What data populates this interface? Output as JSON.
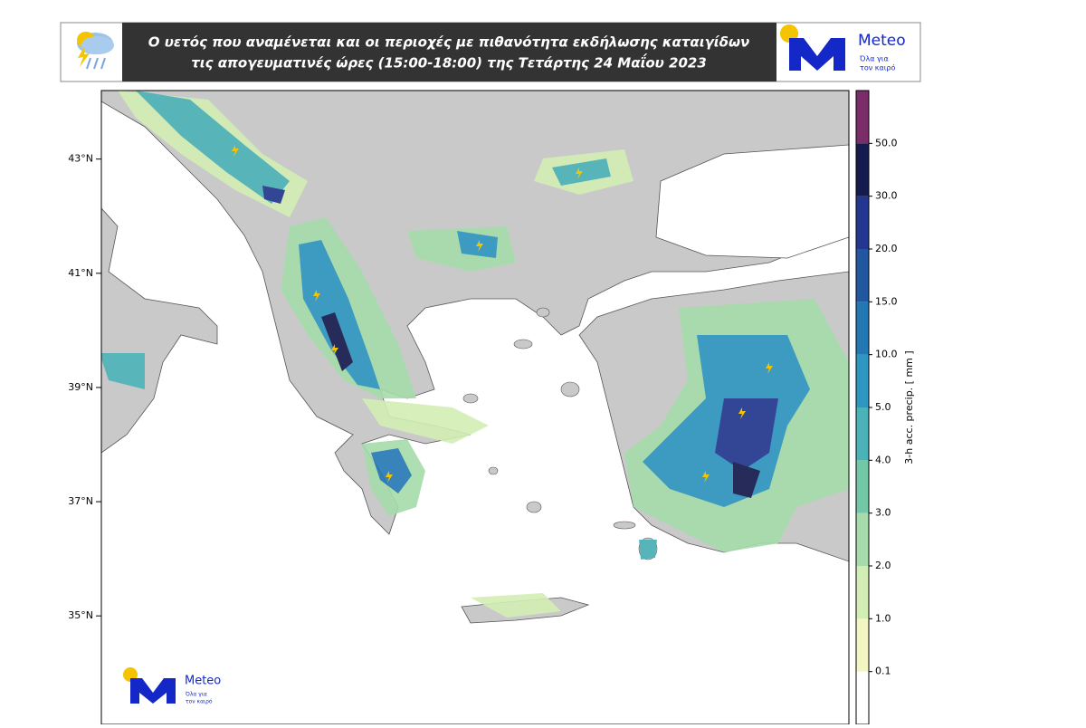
{
  "header": {
    "title": [
      "Ο υετός που αναμένεται και οι περιοχές με πιθανότητα εκδήλωσης καταιγίδων",
      "τις απογευματινές ώρες (15:00-18:00) της Τετάρτης 24 Μαΐου 2023"
    ]
  },
  "logo": {
    "name": "Meteo",
    "tagline": [
      "Όλα για",
      "τον καιρό"
    ]
  },
  "map": {
    "ylim": [
      33.1,
      44.2
    ],
    "yticks": [
      {
        "value": 43,
        "label": "43°N"
      },
      {
        "value": 41,
        "label": "41°N"
      },
      {
        "value": 39,
        "label": "39°N"
      },
      {
        "value": 37,
        "label": "37°N"
      },
      {
        "value": 35,
        "label": "35°N"
      }
    ]
  },
  "colorbar": {
    "label": "3-h acc. precip. [ mm ]",
    "ticks": [
      0.1,
      {
        "value": 1,
        "label": "1.0"
      },
      {
        "value": 2,
        "label": "2.0"
      },
      {
        "value": 3,
        "label": "3.0"
      },
      {
        "value": 4,
        "label": "4.0"
      },
      {
        "value": 5,
        "label": "5.0"
      },
      {
        "value": 10,
        "label": "10.0"
      },
      {
        "value": 15,
        "label": "15.0"
      },
      {
        "value": 20,
        "label": "20.0"
      },
      {
        "value": 30,
        "label": "30.0"
      },
      {
        "value": 50,
        "label": "50.0"
      }
    ],
    "colors": [
      "#ffffff",
      "#f3f6c2",
      "#d3eeb4",
      "#a6dcab",
      "#72c7a7",
      "#4bb2b8",
      "#2e97c1",
      "#2377b3",
      "#20579f",
      "#233790",
      "#151b4e",
      "#7b2d6a"
    ]
  }
}
